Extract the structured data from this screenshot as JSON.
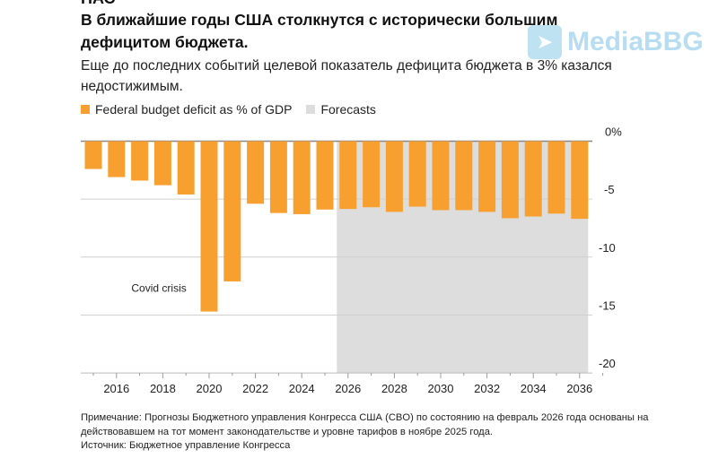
{
  "header": {
    "cut_text": "НАС",
    "title": "В ближайшие годы США столкнутся с исторически большим дефицитом бюджета.",
    "subtitle": "Еще до последних событий целевой показатель дефицита бюджета в 3% казался недостижимым."
  },
  "watermark": {
    "text": "MediaBBG",
    "icon": "telegram-icon"
  },
  "colors": {
    "bar": "#F7A030",
    "forecast": "#DDDDDD",
    "grid": "#D0D0D0",
    "axis": "#888888"
  },
  "chart_data": {
    "type": "bar",
    "title": "В ближайшие годы США столкнутся с исторически большим дефицитом бюджета.",
    "legend": [
      {
        "label": "Federal budget deficit as % of GDP",
        "color": "#F7A030"
      },
      {
        "label": "Forecasts",
        "color": "#DDDDDD"
      }
    ],
    "legend_placement": "top-left",
    "categories": [
      2015,
      2016,
      2017,
      2018,
      2019,
      2020,
      2021,
      2022,
      2023,
      2024,
      2025,
      2026,
      2027,
      2028,
      2029,
      2030,
      2031,
      2032,
      2033,
      2034,
      2035,
      2036
    ],
    "values": [
      -2.4,
      -3.1,
      -3.4,
      -3.8,
      -4.6,
      -14.7,
      -12.1,
      -5.4,
      -6.2,
      -6.3,
      -5.9,
      -5.85,
      -5.7,
      -6.1,
      -5.65,
      -5.95,
      -5.95,
      -6.1,
      -6.65,
      -6.5,
      -6.25,
      -6.7
    ],
    "forecast_range": [
      2026,
      2036
    ],
    "ylim": [
      -20,
      0
    ],
    "yticks": [
      {
        "v": 0,
        "label": "0%"
      },
      {
        "v": -5,
        "label": "-5"
      },
      {
        "v": -10,
        "label": "-10"
      },
      {
        "v": -15,
        "label": "-15"
      },
      {
        "v": -20,
        "label": "-20"
      }
    ],
    "xticks": [
      "2016",
      "2018",
      "2020",
      "2022",
      "2024",
      "2026",
      "2028",
      "2030",
      "2032",
      "2034",
      "2036"
    ],
    "annotation": {
      "text": "Covid crisis",
      "x": 2018,
      "y": -13
    },
    "grid": true,
    "xlabel": "",
    "ylabel": ""
  },
  "footer": {
    "note": "Примечание: Прогнозы Бюджетного управления Конгресса США (CBO) по состоянию на февраль 2026 года основаны на действовавшем на тот момент законодательстве и уровне тарифов в ноябре 2025 года.",
    "source": "Источник: Бюджетное управление Конгресса"
  }
}
